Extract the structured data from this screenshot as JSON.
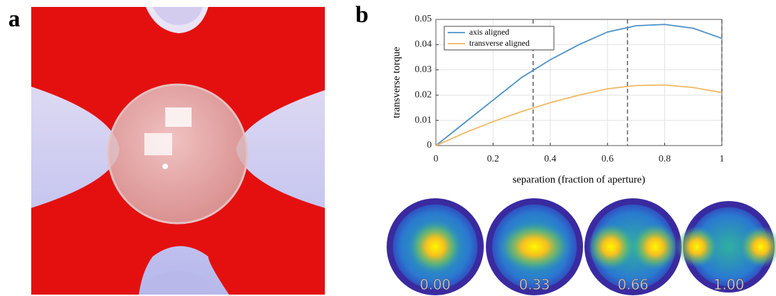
{
  "panels": [
    "a",
    "b"
  ],
  "chart_data": {
    "type": "line",
    "xlabel": "separation (fraction of aperture)",
    "ylabel": "transverse torque",
    "x": [
      0,
      0.1,
      0.2,
      0.3,
      0.4,
      0.5,
      0.6,
      0.7,
      0.8,
      0.9,
      1
    ],
    "series": [
      {
        "name": "axis aligned",
        "color": "#4a90c8",
        "values": [
          0,
          0.009,
          0.018,
          0.027,
          0.034,
          0.04,
          0.045,
          0.0475,
          0.048,
          0.0465,
          0.0425
        ]
      },
      {
        "name": "transverse aligned",
        "color": "#f0b860",
        "values": [
          0,
          0.005,
          0.0095,
          0.0135,
          0.017,
          0.02,
          0.0225,
          0.0238,
          0.024,
          0.023,
          0.021
        ]
      }
    ],
    "xlim": [
      0,
      1
    ],
    "xticks": [
      0,
      0.2,
      0.4,
      0.6,
      0.8,
      1
    ],
    "ylim": [
      0,
      0.05
    ],
    "yticks": [
      0,
      0.01,
      0.02,
      0.03,
      0.04,
      0.05
    ],
    "vlines": [
      0.34,
      0.67,
      1
    ],
    "grid": true,
    "legend": "upper-left"
  },
  "insets": [
    "0.00",
    "0.33",
    "0.66",
    "1.00"
  ]
}
